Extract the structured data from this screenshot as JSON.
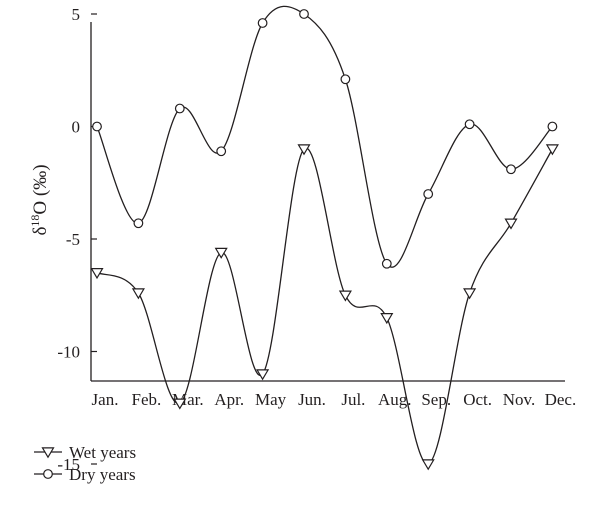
{
  "chart_data": {
    "type": "line",
    "title": "",
    "xlabel": "",
    "ylabel": "δ18O (‰)",
    "ylabel_parts": {
      "symbol": "δ",
      "superscript": "18",
      "rest": "O (‰)"
    },
    "categories": [
      "Jan.",
      "Feb.",
      "Mar.",
      "Apr.",
      "May",
      "Jun.",
      "Jul.",
      "Aug.",
      "Sep.",
      "Oct.",
      "Nov.",
      "Dec."
    ],
    "ylim": [
      -17.5,
      7.5
    ],
    "yticks": [
      5,
      0,
      -5,
      -10,
      -15
    ],
    "ytick_labels": [
      "5",
      "0",
      "-5",
      "-10",
      "-15"
    ],
    "grid": false,
    "legend_position": "bottom-left",
    "series": [
      {
        "name": "Wet years",
        "marker": "triangle-down",
        "values": [
          -6.5,
          -7.4,
          -12.3,
          -5.6,
          -11.0,
          -1.0,
          -7.5,
          -8.5,
          -15.0,
          -7.4,
          -4.3,
          -1.0
        ]
      },
      {
        "name": "Dry years",
        "marker": "circle",
        "values": [
          0.0,
          -4.3,
          0.8,
          -1.1,
          4.6,
          5.0,
          2.1,
          -6.1,
          -3.0,
          0.1,
          -1.9,
          0.0
        ]
      }
    ],
    "colors": {
      "line": "#231f20",
      "marker_fill": "#ffffff"
    }
  }
}
